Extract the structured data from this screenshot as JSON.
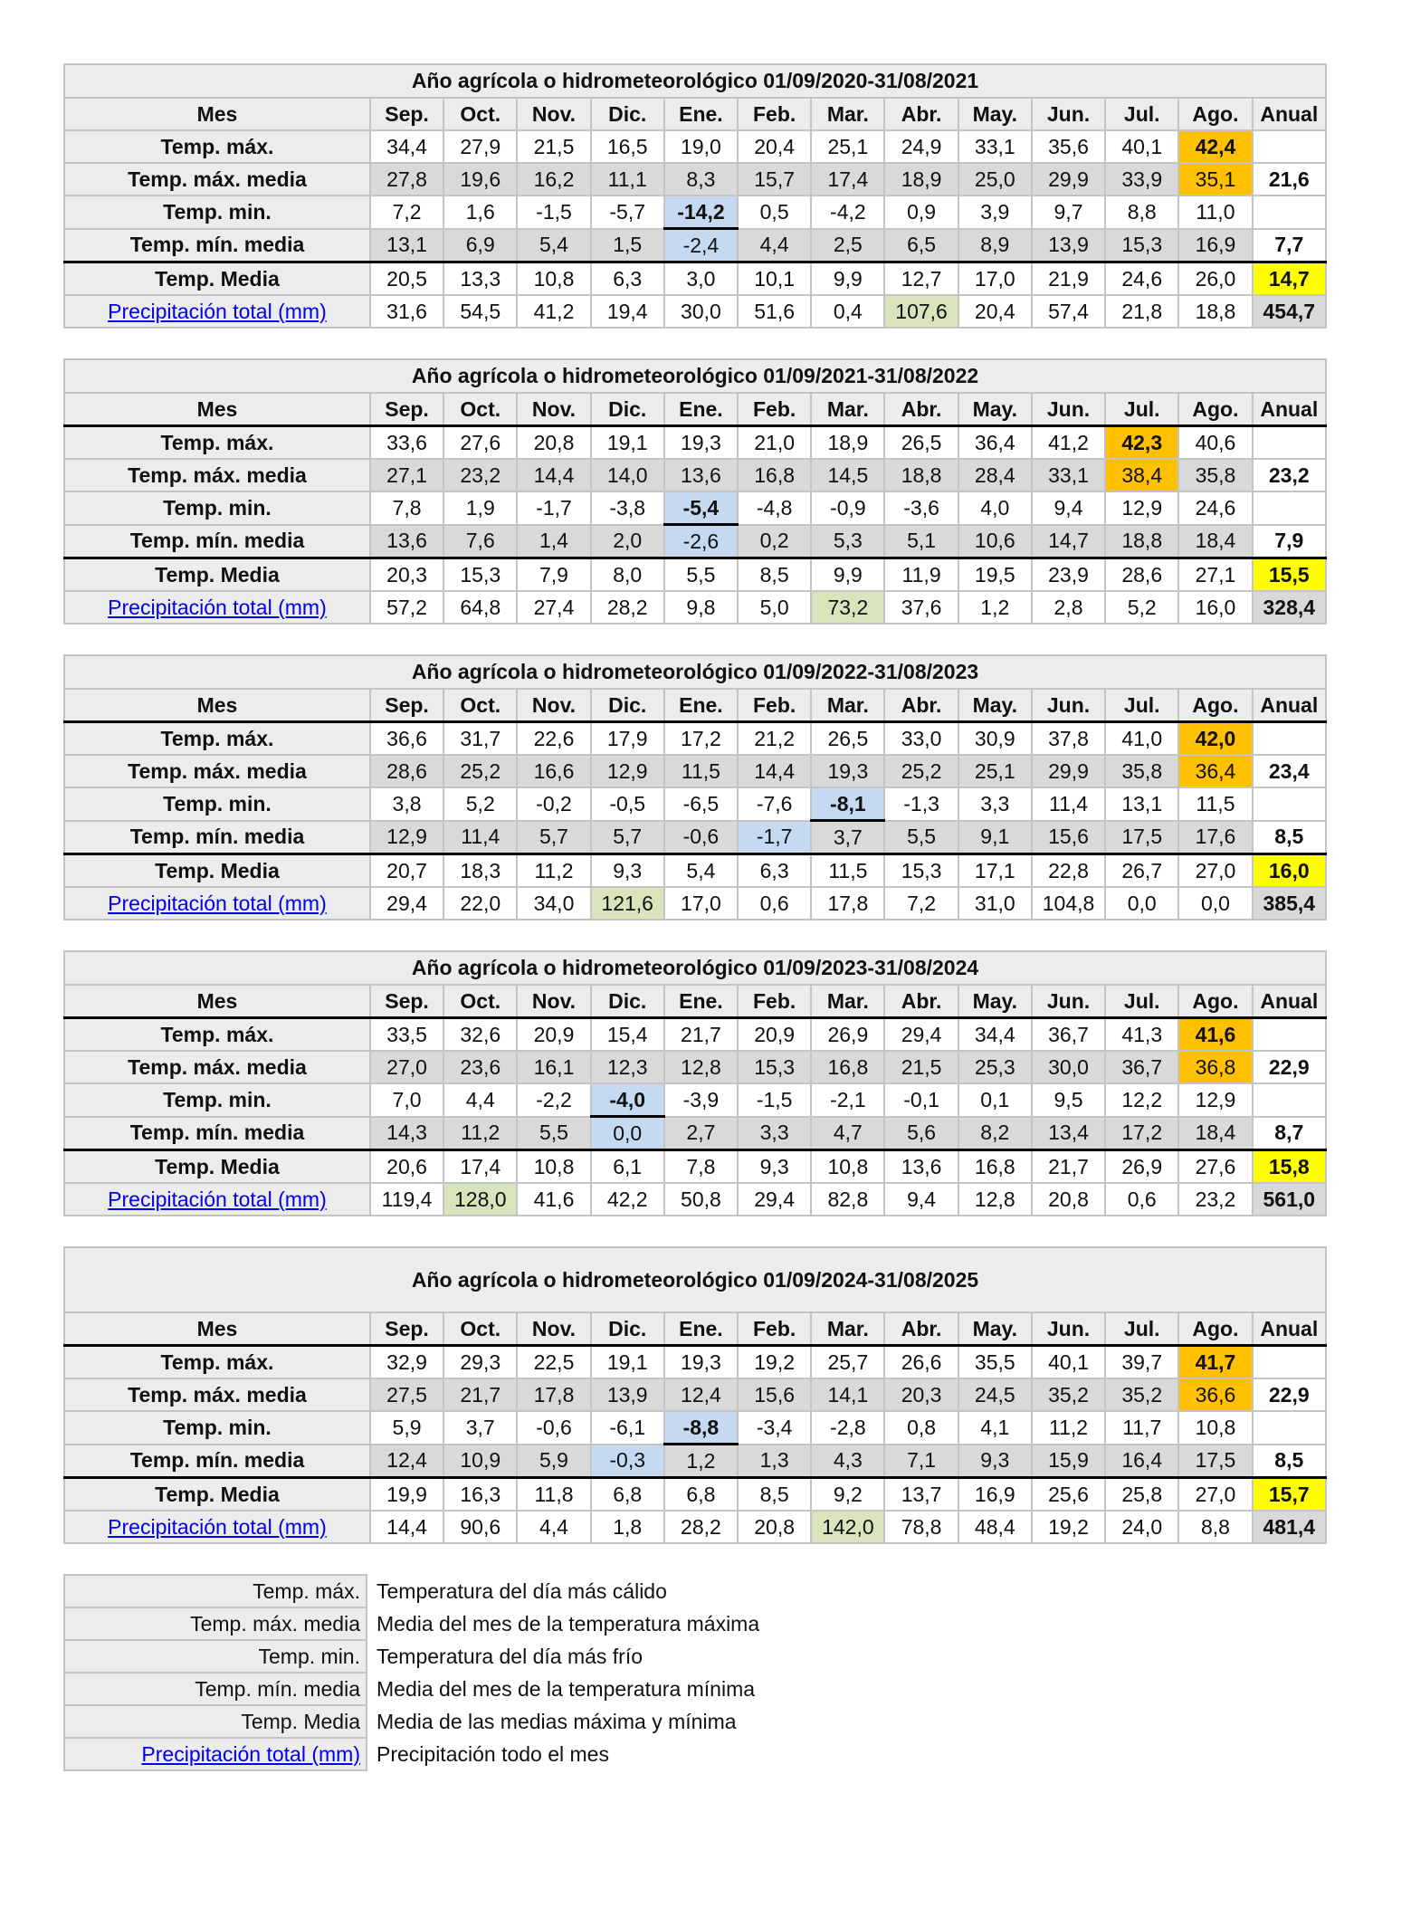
{
  "colors": {
    "max_highlight": "#ffc000",
    "annual_mean_highlight": "#ffff00",
    "min_highlight": "#c5d9f1",
    "precip_highlight": "#d8e4bc",
    "row_gray": "#d9d9d9",
    "label_bg": "#ececec",
    "link": "#0000ee"
  },
  "header_label": "Mes",
  "months": [
    "Sep.",
    "Oct.",
    "Nov.",
    "Dic.",
    "Ene.",
    "Feb.",
    "Mar.",
    "Abr.",
    "May.",
    "Jun.",
    "Jul.",
    "Ago."
  ],
  "annual_label": "Anual",
  "row_labels": [
    "Temp. máx.",
    "Temp. máx. media",
    "Temp. min.",
    "Temp. mín. media",
    "Temp. Media",
    "Precipitación total (mm)"
  ],
  "tables": [
    {
      "title": "Año agrícola o hidrometeorológico 01/09/2020-31/08/2021",
      "rows": [
        {
          "values": [
            "34,4",
            "27,9",
            "21,5",
            "16,5",
            "19,0",
            "20,4",
            "25,1",
            "24,9",
            "33,1",
            "35,6",
            "40,1",
            "42,4"
          ],
          "annual": ""
        },
        {
          "values": [
            "27,8",
            "19,6",
            "16,2",
            "11,1",
            "8,3",
            "15,7",
            "17,4",
            "18,9",
            "25,0",
            "29,9",
            "33,9",
            "35,1"
          ],
          "annual": "21,6"
        },
        {
          "values": [
            "7,2",
            "1,6",
            "-1,5",
            "-5,7",
            "-14,2",
            "0,5",
            "-4,2",
            "0,9",
            "3,9",
            "9,7",
            "8,8",
            "11,0"
          ],
          "annual": ""
        },
        {
          "values": [
            "13,1",
            "6,9",
            "5,4",
            "1,5",
            "-2,4",
            "4,4",
            "2,5",
            "6,5",
            "8,9",
            "13,9",
            "15,3",
            "16,9"
          ],
          "annual": "7,7"
        },
        {
          "values": [
            "20,5",
            "13,3",
            "10,8",
            "6,3",
            "3,0",
            "10,1",
            "9,9",
            "12,7",
            "17,0",
            "21,9",
            "24,6",
            "26,0"
          ],
          "annual": "14,7"
        },
        {
          "values": [
            "31,6",
            "54,5",
            "41,2",
            "19,4",
            "30,0",
            "51,6",
            "0,4",
            "107,6",
            "20,4",
            "57,4",
            "21,8",
            "18,8"
          ],
          "annual": "454,7"
        }
      ],
      "max_month": 11,
      "min_month": 4,
      "min_media_month": 4,
      "precip_month": 7
    },
    {
      "title": "Año agrícola o hidrometeorológico 01/09/2021-31/08/2022",
      "rows": [
        {
          "values": [
            "33,6",
            "27,6",
            "20,8",
            "19,1",
            "19,3",
            "21,0",
            "18,9",
            "26,5",
            "36,4",
            "41,2",
            "42,3",
            "40,6"
          ],
          "annual": ""
        },
        {
          "values": [
            "27,1",
            "23,2",
            "14,4",
            "14,0",
            "13,6",
            "16,8",
            "14,5",
            "18,8",
            "28,4",
            "33,1",
            "38,4",
            "35,8"
          ],
          "annual": "23,2"
        },
        {
          "values": [
            "7,8",
            "1,9",
            "-1,7",
            "-3,8",
            "-5,4",
            "-4,8",
            "-0,9",
            "-3,6",
            "4,0",
            "9,4",
            "12,9",
            "24,6"
          ],
          "annual": ""
        },
        {
          "values": [
            "13,6",
            "7,6",
            "1,4",
            "2,0",
            "-2,6",
            "0,2",
            "5,3",
            "5,1",
            "10,6",
            "14,7",
            "18,8",
            "18,4"
          ],
          "annual": "7,9"
        },
        {
          "values": [
            "20,3",
            "15,3",
            "7,9",
            "8,0",
            "5,5",
            "8,5",
            "9,9",
            "11,9",
            "19,5",
            "23,9",
            "28,6",
            "27,1"
          ],
          "annual": "15,5"
        },
        {
          "values": [
            "57,2",
            "64,8",
            "27,4",
            "28,2",
            "9,8",
            "5,0",
            "73,2",
            "37,6",
            "1,2",
            "2,8",
            "5,2",
            "16,0"
          ],
          "annual": "328,4"
        }
      ],
      "max_month": 10,
      "min_month": 4,
      "min_media_month": 4,
      "precip_month": 6
    },
    {
      "title": "Año agrícola o hidrometeorológico 01/09/2022-31/08/2023",
      "rows": [
        {
          "values": [
            "36,6",
            "31,7",
            "22,6",
            "17,9",
            "17,2",
            "21,2",
            "26,5",
            "33,0",
            "30,9",
            "37,8",
            "41,0",
            "42,0"
          ],
          "annual": ""
        },
        {
          "values": [
            "28,6",
            "25,2",
            "16,6",
            "12,9",
            "11,5",
            "14,4",
            "19,3",
            "25,2",
            "25,1",
            "29,9",
            "35,8",
            "36,4"
          ],
          "annual": "23,4"
        },
        {
          "values": [
            "3,8",
            "5,2",
            "-0,2",
            "-0,5",
            "-6,5",
            "-7,6",
            "-8,1",
            "-1,3",
            "3,3",
            "11,4",
            "13,1",
            "11,5"
          ],
          "annual": ""
        },
        {
          "values": [
            "12,9",
            "11,4",
            "5,7",
            "5,7",
            "-0,6",
            "-1,7",
            "3,7",
            "5,5",
            "9,1",
            "15,6",
            "17,5",
            "17,6"
          ],
          "annual": "8,5"
        },
        {
          "values": [
            "20,7",
            "18,3",
            "11,2",
            "9,3",
            "5,4",
            "6,3",
            "11,5",
            "15,3",
            "17,1",
            "22,8",
            "26,7",
            "27,0"
          ],
          "annual": "16,0"
        },
        {
          "values": [
            "29,4",
            "22,0",
            "34,0",
            "121,6",
            "17,0",
            "0,6",
            "17,8",
            "7,2",
            "31,0",
            "104,8",
            "0,0",
            "0,0"
          ],
          "annual": "385,4"
        }
      ],
      "max_month": 11,
      "min_month": 6,
      "min_media_month": 5,
      "precip_month": 3
    },
    {
      "title": "Año agrícola o hidrometeorológico 01/09/2023-31/08/2024",
      "rows": [
        {
          "values": [
            "33,5",
            "32,6",
            "20,9",
            "15,4",
            "21,7",
            "20,9",
            "26,9",
            "29,4",
            "34,4",
            "36,7",
            "41,3",
            "41,6"
          ],
          "annual": ""
        },
        {
          "values": [
            "27,0",
            "23,6",
            "16,1",
            "12,3",
            "12,8",
            "15,3",
            "16,8",
            "21,5",
            "25,3",
            "30,0",
            "36,7",
            "36,8"
          ],
          "annual": "22,9"
        },
        {
          "values": [
            "7,0",
            "4,4",
            "-2,2",
            "-4,0",
            "-3,9",
            "-1,5",
            "-2,1",
            "-0,1",
            "0,1",
            "9,5",
            "12,2",
            "12,9"
          ],
          "annual": ""
        },
        {
          "values": [
            "14,3",
            "11,2",
            "5,5",
            "0,0",
            "2,7",
            "3,3",
            "4,7",
            "5,6",
            "8,2",
            "13,4",
            "17,2",
            "18,4"
          ],
          "annual": "8,7"
        },
        {
          "values": [
            "20,6",
            "17,4",
            "10,8",
            "6,1",
            "7,8",
            "9,3",
            "10,8",
            "13,6",
            "16,8",
            "21,7",
            "26,9",
            "27,6"
          ],
          "annual": "15,8"
        },
        {
          "values": [
            "119,4",
            "128,0",
            "41,6",
            "42,2",
            "50,8",
            "29,4",
            "82,8",
            "9,4",
            "12,8",
            "20,8",
            "0,6",
            "23,2"
          ],
          "annual": "561,0"
        }
      ],
      "max_month": 11,
      "min_month": 3,
      "min_media_month": 3,
      "precip_month": 1
    },
    {
      "title": "Año agrícola o hidrometeorológico 01/09/2024-31/08/2025",
      "rows": [
        {
          "values": [
            "32,9",
            "29,3",
            "22,5",
            "19,1",
            "19,3",
            "19,2",
            "25,7",
            "26,6",
            "35,5",
            "40,1",
            "39,7",
            "41,7"
          ],
          "annual": ""
        },
        {
          "values": [
            "27,5",
            "21,7",
            "17,8",
            "13,9",
            "12,4",
            "15,6",
            "14,1",
            "20,3",
            "24,5",
            "35,2",
            "35,2",
            "36,6"
          ],
          "annual": "22,9"
        },
        {
          "values": [
            "5,9",
            "3,7",
            "-0,6",
            "-6,1",
            "-8,8",
            "-3,4",
            "-2,8",
            "0,8",
            "4,1",
            "11,2",
            "11,7",
            "10,8"
          ],
          "annual": ""
        },
        {
          "values": [
            "12,4",
            "10,9",
            "5,9",
            "-0,3",
            "1,2",
            "1,3",
            "4,3",
            "7,1",
            "9,3",
            "15,9",
            "16,4",
            "17,5"
          ],
          "annual": "8,5"
        },
        {
          "values": [
            "19,9",
            "16,3",
            "11,8",
            "6,8",
            "6,8",
            "8,5",
            "9,2",
            "13,7",
            "16,9",
            "25,6",
            "25,8",
            "27,0"
          ],
          "annual": "15,7"
        },
        {
          "values": [
            "14,4",
            "90,6",
            "4,4",
            "1,8",
            "28,2",
            "20,8",
            "142,0",
            "78,8",
            "48,4",
            "19,2",
            "24,0",
            "8,8"
          ],
          "annual": "481,4"
        }
      ],
      "max_month": 11,
      "min_month": 4,
      "min_media_month": 3,
      "precip_month": 6
    }
  ],
  "legend": [
    {
      "label": "Temp. máx.",
      "desc": "Temperatura del día más cálido"
    },
    {
      "label": "Temp. máx. media",
      "desc": "Media del mes de la temperatura máxima"
    },
    {
      "label": "Temp. min.",
      "desc": "Temperatura del día más frío"
    },
    {
      "label": "Temp. mín. media",
      "desc": "Media del mes de la temperatura mínima"
    },
    {
      "label": "Temp. Media",
      "desc": "Media de las medias máxima y mínima"
    },
    {
      "label": "Precipitación total (mm)",
      "desc": "Precipitación todo el mes",
      "link": true
    }
  ]
}
